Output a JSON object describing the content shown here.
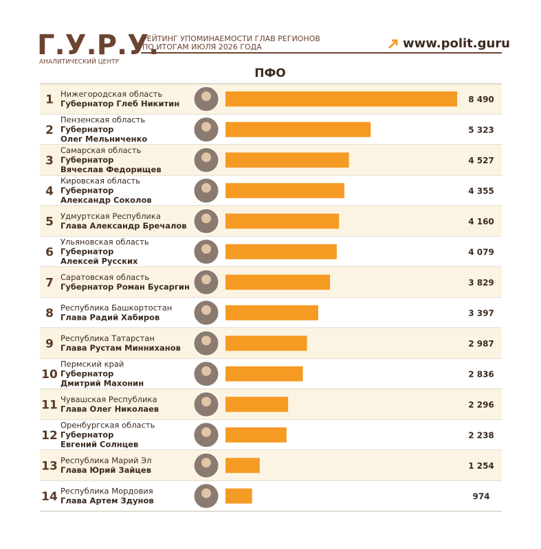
{
  "header": {
    "logo": "Г.У.Р.У.",
    "logo_sub": "АНАЛИТИЧЕСКИЙ ЦЕНТР",
    "subtitle": [
      "РЕЙТИНГ УПОМИНАЕМОСТИ ГЛАВ РЕГИОНОВ",
      "ПО ИТОГАМ ИЮЛЯ 2026 ГОДА"
    ],
    "url": "www.polit.guru"
  },
  "chart_data": {
    "type": "bar",
    "orientation": "horizontal",
    "title": "ПФО",
    "color": "#f59a23",
    "ranks": [
      1,
      2,
      3,
      4,
      5,
      6,
      7,
      8,
      9,
      10,
      11,
      12,
      13,
      14
    ],
    "categories": [
      "Нижегородская область",
      "Пензенская область",
      "Самарская область",
      "Кировская область",
      "Удмуртская Республика",
      "Ульяновская область",
      "Саратовская область",
      "Республика Башкортостан",
      "Республика Татарстан",
      "Пермский край",
      "Чувашская Республика",
      "Оренбургская область",
      "Республика Марий Эл",
      "Республика Мордовия"
    ],
    "names": [
      [
        "Губернатор Глеб Никитин"
      ],
      [
        "Губернатор",
        "Олег Мельниченко"
      ],
      [
        "Губернатор",
        "Вячеслав Федорищев"
      ],
      [
        "Губернатор",
        "Александр Соколов"
      ],
      [
        "Глава Александр Бречалов"
      ],
      [
        "Губернатор",
        "Алексей Русских"
      ],
      [
        "Губернатор Роман Бусаргин"
      ],
      [
        "Глава Радий Хабиров"
      ],
      [
        "Глава Рустам Минниханов"
      ],
      [
        "Губернатор",
        "Дмитрий Махонин"
      ],
      [
        "Глава Олег Николаев"
      ],
      [
        "Губернатор",
        "Евгений Солнцев"
      ],
      [
        "Глава Юрий Зайцев"
      ],
      [
        "Глава Артем Здунов"
      ]
    ],
    "values": [
      8490,
      5323,
      4527,
      4355,
      4160,
      4079,
      3829,
      3397,
      2987,
      2836,
      2296,
      2238,
      1254,
      974
    ],
    "value_labels": [
      "8 490",
      "5 323",
      "4 527",
      "4 355",
      "4 160",
      "4 079",
      "3 829",
      "3 397",
      "2 987",
      "2 836",
      "2 296",
      "2 238",
      "1 254",
      "974"
    ]
  }
}
